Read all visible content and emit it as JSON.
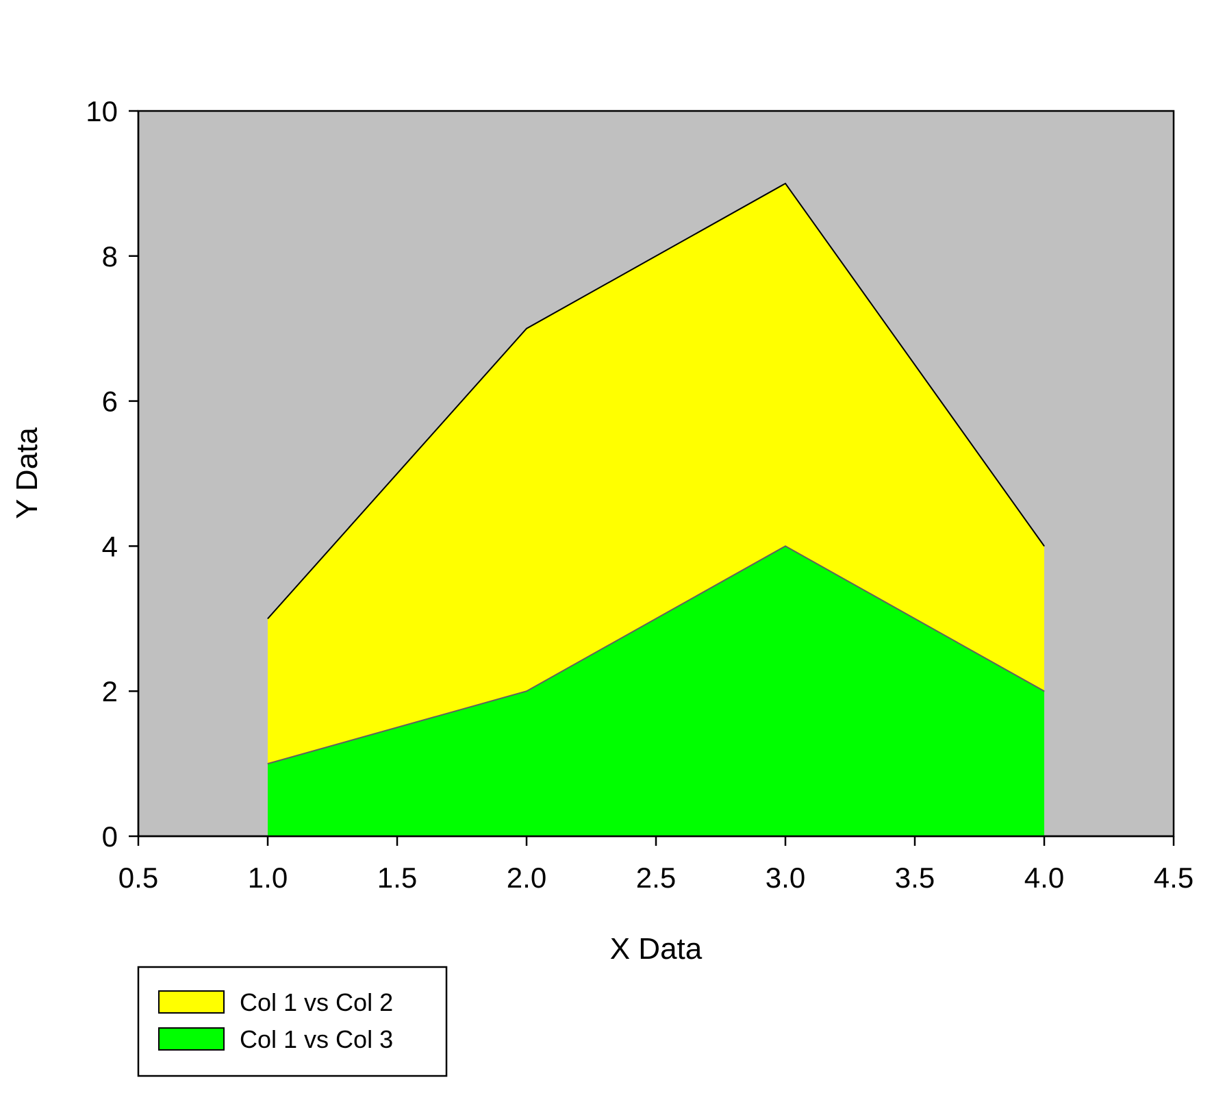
{
  "chart_data": {
    "type": "area",
    "xlabel": "X Data",
    "ylabel": "Y Data",
    "xlim": [
      0.5,
      4.5
    ],
    "ylim": [
      0,
      10
    ],
    "xticks": [
      "0.5",
      "1.0",
      "1.5",
      "2.0",
      "2.5",
      "3.0",
      "3.5",
      "4.0",
      "4.5"
    ],
    "yticks": [
      "0",
      "2",
      "4",
      "6",
      "8",
      "10"
    ],
    "x": [
      1.0,
      2.0,
      3.0,
      4.0
    ],
    "plot_background": "#c0c0c0",
    "grid": false,
    "legend_position": "bottom-left",
    "series": [
      {
        "name": "Col 1 vs Col 2",
        "values": [
          3,
          7,
          9,
          4
        ],
        "color": "#ffff00",
        "edge_color": "#000000"
      },
      {
        "name": "Col 1 vs Col 3",
        "values": [
          1,
          2,
          4,
          2
        ],
        "color": "#00ff00",
        "edge_color": "#606060"
      }
    ]
  }
}
